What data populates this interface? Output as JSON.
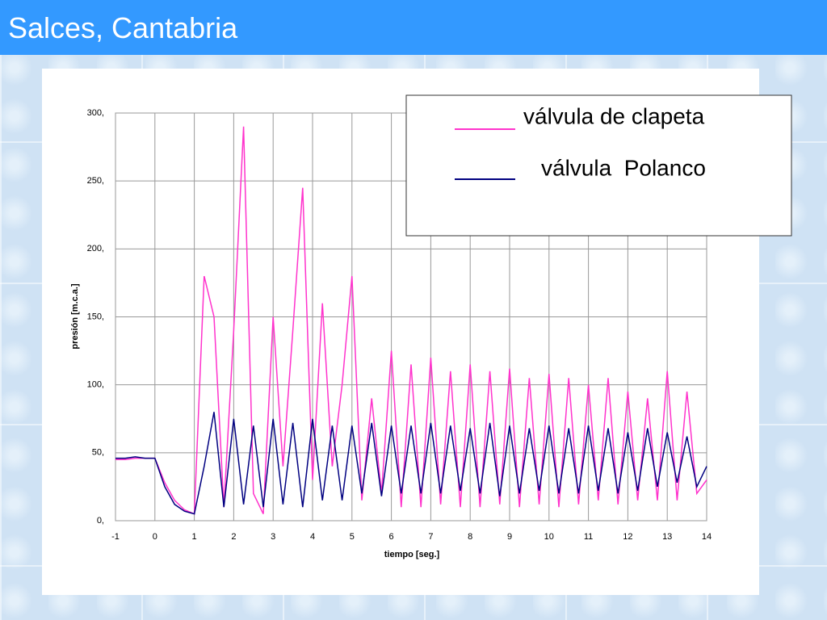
{
  "slide_title": "Salces, Cantabria",
  "chart_data": {
    "type": "line",
    "x_label": "tiempo [seg.]",
    "y_label": "presión [m.c.a.]",
    "x": [
      -1,
      -0.75,
      -0.5,
      -0.25,
      0,
      0.25,
      0.5,
      0.75,
      1,
      1.25,
      1.5,
      1.75,
      2,
      2.25,
      2.5,
      2.75,
      3,
      3.25,
      3.5,
      3.75,
      4,
      4.25,
      4.5,
      4.75,
      5,
      5.25,
      5.5,
      5.75,
      6,
      6.25,
      6.5,
      6.75,
      7,
      7.25,
      7.5,
      7.75,
      8,
      8.25,
      8.5,
      8.75,
      9,
      9.25,
      9.5,
      9.75,
      10,
      10.25,
      10.5,
      10.75,
      11,
      11.25,
      11.5,
      11.75,
      12,
      12.25,
      12.5,
      12.75,
      13,
      13.25,
      13.5,
      13.75,
      14
    ],
    "series": [
      {
        "name": "válvula de clapeta",
        "color": "#ff33cc",
        "values": [
          45,
          45,
          46,
          46,
          46,
          28,
          15,
          8,
          5,
          180,
          150,
          10,
          140,
          290,
          20,
          5,
          150,
          40,
          140,
          245,
          30,
          160,
          40,
          100,
          180,
          15,
          90,
          20,
          125,
          10,
          115,
          10,
          120,
          12,
          110,
          10,
          115,
          10,
          110,
          12,
          112,
          10,
          105,
          12,
          108,
          10,
          105,
          12,
          100,
          15,
          105,
          12,
          95,
          15,
          90,
          15,
          110,
          15,
          95,
          20,
          30
        ]
      },
      {
        "name": "válvula  Polanco",
        "color": "#000080",
        "values": [
          46,
          46,
          47,
          46,
          46,
          25,
          12,
          7,
          5,
          40,
          80,
          10,
          75,
          12,
          70,
          10,
          75,
          12,
          72,
          10,
          75,
          15,
          70,
          15,
          70,
          20,
          72,
          18,
          70,
          20,
          70,
          20,
          72,
          20,
          70,
          22,
          68,
          20,
          72,
          18,
          70,
          20,
          68,
          22,
          70,
          20,
          68,
          20,
          70,
          22,
          68,
          20,
          65,
          22,
          68,
          25,
          65,
          28,
          62,
          25,
          40
        ]
      }
    ],
    "xlim": [
      -1,
      14
    ],
    "xticks": [
      -1,
      0,
      1,
      2,
      3,
      4,
      5,
      6,
      7,
      8,
      9,
      10,
      11,
      12,
      13,
      14
    ],
    "ylim": [
      0,
      300
    ],
    "yticks": [
      {
        "value": 0,
        "label": "0,"
      },
      {
        "value": 50,
        "label": "50,"
      },
      {
        "value": 100,
        "label": "100,"
      },
      {
        "value": 150,
        "label": "150,"
      },
      {
        "value": 200,
        "label": "200,"
      },
      {
        "value": 250,
        "label": "250,"
      },
      {
        "value": 300,
        "label": "300,"
      }
    ],
    "grid": true
  }
}
